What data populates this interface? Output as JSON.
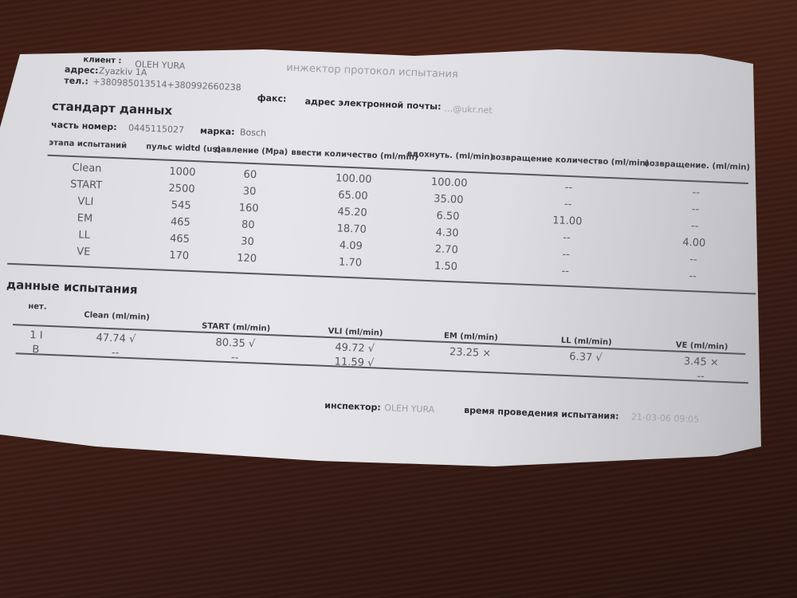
{
  "header": {
    "client_label": "клиент :",
    "client_value": "OLEH YURA",
    "address_label": "адрес:",
    "address_value": "Zyazkiv 1A",
    "phone_label": "тел.:",
    "phone_value": "+380985013514+380992660238",
    "fax_label": "факс:",
    "email_label": "адрес электронной почты:",
    "email_value": "…@ukr.net",
    "title": "инжектор протокол испытания"
  },
  "standard": {
    "title": "стандарт данных",
    "part_label": "часть номер:",
    "part_value": "0445115027",
    "brand_label": "марка:",
    "brand_value": "Bosch",
    "columns": [
      "этапа испытаний",
      "пульс widtd (us)",
      "давление (Mpa)",
      "ввести количество (ml/min)",
      "вдохнуть. (ml/min)",
      "возвращение количество (ml/min)",
      "возвращение. (ml/min)"
    ],
    "rows": [
      [
        "Clean",
        "1000",
        "60",
        "100.00",
        "100.00",
        "--",
        "--"
      ],
      [
        "START",
        "2500",
        "30",
        "65.00",
        "35.00",
        "--",
        "--"
      ],
      [
        "VLI",
        "545",
        "160",
        "45.20",
        "6.50",
        "11.00",
        "--"
      ],
      [
        "EM",
        "465",
        "80",
        "18.70",
        "4.30",
        "--",
        "4.00"
      ],
      [
        "LL",
        "465",
        "30",
        "4.09",
        "2.70",
        "--",
        "--"
      ],
      [
        "VE",
        "170",
        "120",
        "1.70",
        "1.50",
        "--",
        "--"
      ]
    ]
  },
  "test": {
    "title": "данные испытания",
    "columns": [
      "нет.",
      "Clean (ml/min)",
      "START (ml/min)",
      "VLI (ml/min)",
      "EM (ml/min)",
      "LL (ml/min)",
      "VE (ml/min)"
    ],
    "rows": [
      [
        "1 I",
        "47.74 √",
        "80.35 √",
        "49.72 √",
        "23.25 ×",
        "6.37 √",
        "3.45 ×"
      ],
      [
        "B",
        "--",
        "--",
        "11.59 √",
        "",
        "",
        "--"
      ]
    ]
  },
  "footer": {
    "inspector_label": "инспектор:",
    "inspector_value": "OLEH YURA",
    "time_label": "время проведения испытания:",
    "time_value": "21-03-06 09:05"
  }
}
